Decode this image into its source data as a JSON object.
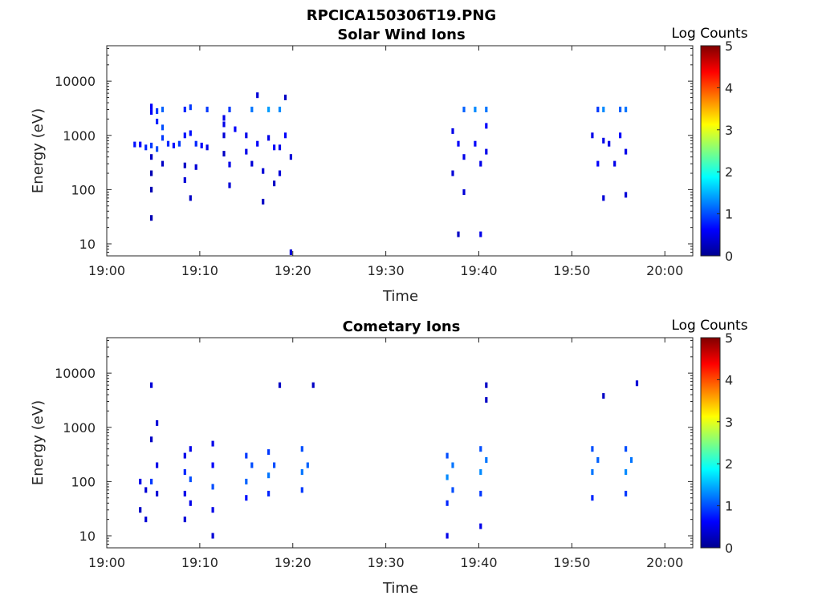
{
  "figure_title": "RPCICA150306T19.PNG",
  "chart_data": [
    {
      "type": "heatmap",
      "title": "Solar Wind Ions",
      "xlabel": "Time",
      "ylabel": "Energy (eV)",
      "yscale": "log",
      "ylim": [
        6,
        45000
      ],
      "xlim": [
        "19:00",
        "20:03"
      ],
      "x_ticks": [
        "19:00",
        "19:10",
        "19:20",
        "19:30",
        "19:40",
        "19:50",
        "20:00"
      ],
      "y_ticks": [
        "10",
        "100",
        "1000",
        "10000"
      ],
      "colorbar": {
        "label": "Log Counts",
        "min": 0,
        "max": 5,
        "ticks": [
          "0",
          "1",
          "2",
          "3",
          "4",
          "5"
        ],
        "colormap": "jet"
      },
      "grid": false,
      "cells": [
        {
          "t": 19.05,
          "e": 680,
          "v": 0.7
        },
        {
          "t": 19.06,
          "e": 680,
          "v": 0.6
        },
        {
          "t": 19.07,
          "e": 600,
          "v": 0.8
        },
        {
          "t": 19.08,
          "e": 650,
          "v": 0.9
        },
        {
          "t": 19.08,
          "e": 3400,
          "v": 0.6
        },
        {
          "t": 19.08,
          "e": 2700,
          "v": 0.6
        },
        {
          "t": 19.08,
          "e": 400,
          "v": 0.3
        },
        {
          "t": 19.08,
          "e": 200,
          "v": 0.2
        },
        {
          "t": 19.08,
          "e": 100,
          "v": 0.2
        },
        {
          "t": 19.08,
          "e": 30,
          "v": 0.2
        },
        {
          "t": 19.09,
          "e": 2800,
          "v": 0.9
        },
        {
          "t": 19.09,
          "e": 1800,
          "v": 0.8
        },
        {
          "t": 19.09,
          "e": 560,
          "v": 1.0
        },
        {
          "t": 19.1,
          "e": 900,
          "v": 0.9
        },
        {
          "t": 19.1,
          "e": 3000,
          "v": 1.1
        },
        {
          "t": 19.1,
          "e": 1400,
          "v": 1.0
        },
        {
          "t": 19.1,
          "e": 300,
          "v": 0.3
        },
        {
          "t": 19.11,
          "e": 700,
          "v": 0.8
        },
        {
          "t": 19.12,
          "e": 650,
          "v": 0.7
        },
        {
          "t": 19.13,
          "e": 700,
          "v": 0.9
        },
        {
          "t": 19.14,
          "e": 3000,
          "v": 0.8
        },
        {
          "t": 19.14,
          "e": 1000,
          "v": 0.7
        },
        {
          "t": 19.14,
          "e": 280,
          "v": 0.3
        },
        {
          "t": 19.14,
          "e": 150,
          "v": 0.4
        },
        {
          "t": 19.15,
          "e": 3300,
          "v": 0.9
        },
        {
          "t": 19.15,
          "e": 1100,
          "v": 0.7
        },
        {
          "t": 19.15,
          "e": 70,
          "v": 0.3
        },
        {
          "t": 19.16,
          "e": 700,
          "v": 0.8
        },
        {
          "t": 19.16,
          "e": 260,
          "v": 0.4
        },
        {
          "t": 19.17,
          "e": 650,
          "v": 0.6
        },
        {
          "t": 19.18,
          "e": 3000,
          "v": 0.9
        },
        {
          "t": 19.18,
          "e": 600,
          "v": 0.5
        },
        {
          "t": 19.21,
          "e": 1600,
          "v": 0.5
        },
        {
          "t": 19.21,
          "e": 2100,
          "v": 0.5
        },
        {
          "t": 19.21,
          "e": 1000,
          "v": 0.4
        },
        {
          "t": 19.21,
          "e": 460,
          "v": 0.3
        },
        {
          "t": 19.22,
          "e": 290,
          "v": 0.5
        },
        {
          "t": 19.22,
          "e": 120,
          "v": 0.4
        },
        {
          "t": 19.22,
          "e": 3000,
          "v": 0.9
        },
        {
          "t": 19.23,
          "e": 1300,
          "v": 0.6
        },
        {
          "t": 19.25,
          "e": 500,
          "v": 0.5
        },
        {
          "t": 19.25,
          "e": 1000,
          "v": 0.5
        },
        {
          "t": 19.26,
          "e": 3000,
          "v": 1.2
        },
        {
          "t": 19.26,
          "e": 300,
          "v": 0.4
        },
        {
          "t": 19.27,
          "e": 5500,
          "v": 0.4
        },
        {
          "t": 19.27,
          "e": 700,
          "v": 0.6
        },
        {
          "t": 19.28,
          "e": 220,
          "v": 0.4
        },
        {
          "t": 19.28,
          "e": 60,
          "v": 0.3
        },
        {
          "t": 19.29,
          "e": 3000,
          "v": 1.4
        },
        {
          "t": 19.29,
          "e": 900,
          "v": 0.5
        },
        {
          "t": 19.3,
          "e": 130,
          "v": 0.3
        },
        {
          "t": 19.3,
          "e": 600,
          "v": 0.6
        },
        {
          "t": 19.31,
          "e": 3000,
          "v": 1.3
        },
        {
          "t": 19.31,
          "e": 600,
          "v": 0.5
        },
        {
          "t": 19.31,
          "e": 200,
          "v": 0.4
        },
        {
          "t": 19.32,
          "e": 5000,
          "v": 0.3
        },
        {
          "t": 19.32,
          "e": 1000,
          "v": 0.6
        },
        {
          "t": 19.33,
          "e": 400,
          "v": 0.4
        },
        {
          "t": 19.33,
          "e": 7,
          "v": 0.4
        },
        {
          "t": 19.62,
          "e": 1200,
          "v": 0.5
        },
        {
          "t": 19.62,
          "e": 200,
          "v": 0.4
        },
        {
          "t": 19.63,
          "e": 700,
          "v": 0.6
        },
        {
          "t": 19.63,
          "e": 15,
          "v": 0.3
        },
        {
          "t": 19.64,
          "e": 3000,
          "v": 1.1
        },
        {
          "t": 19.64,
          "e": 400,
          "v": 0.5
        },
        {
          "t": 19.64,
          "e": 90,
          "v": 0.4
        },
        {
          "t": 19.66,
          "e": 3000,
          "v": 1.3
        },
        {
          "t": 19.66,
          "e": 700,
          "v": 0.6
        },
        {
          "t": 19.67,
          "e": 300,
          "v": 0.5
        },
        {
          "t": 19.67,
          "e": 15,
          "v": 0.5
        },
        {
          "t": 19.68,
          "e": 1500,
          "v": 0.6
        },
        {
          "t": 19.68,
          "e": 3000,
          "v": 1.2
        },
        {
          "t": 19.68,
          "e": 500,
          "v": 0.5
        },
        {
          "t": 19.87,
          "e": 1000,
          "v": 0.5
        },
        {
          "t": 19.88,
          "e": 3000,
          "v": 0.9
        },
        {
          "t": 19.88,
          "e": 300,
          "v": 0.6
        },
        {
          "t": 19.89,
          "e": 3000,
          "v": 1.3
        },
        {
          "t": 19.89,
          "e": 800,
          "v": 0.5
        },
        {
          "t": 19.89,
          "e": 70,
          "v": 0.4
        },
        {
          "t": 19.9,
          "e": 700,
          "v": 0.5
        },
        {
          "t": 19.91,
          "e": 300,
          "v": 0.5
        },
        {
          "t": 19.92,
          "e": 3000,
          "v": 1.1
        },
        {
          "t": 19.92,
          "e": 1000,
          "v": 0.6
        },
        {
          "t": 19.93,
          "e": 3000,
          "v": 1.2
        },
        {
          "t": 19.93,
          "e": 500,
          "v": 0.5
        },
        {
          "t": 19.93,
          "e": 80,
          "v": 0.4
        }
      ]
    },
    {
      "type": "heatmap",
      "title": "Cometary Ions",
      "xlabel": "Time",
      "ylabel": "Energy (eV)",
      "yscale": "log",
      "ylim": [
        6,
        45000
      ],
      "xlim": [
        "19:00",
        "20:03"
      ],
      "x_ticks": [
        "19:00",
        "19:10",
        "19:20",
        "19:30",
        "19:40",
        "19:50",
        "20:00"
      ],
      "y_ticks": [
        "10",
        "100",
        "1000",
        "10000"
      ],
      "colorbar": {
        "label": "Log Counts",
        "min": 0,
        "max": 5,
        "ticks": [
          "0",
          "1",
          "2",
          "3",
          "4",
          "5"
        ],
        "colormap": "jet"
      },
      "grid": false,
      "cells": [
        {
          "t": 19.06,
          "e": 30,
          "v": 0.3
        },
        {
          "t": 19.06,
          "e": 100,
          "v": 0.5
        },
        {
          "t": 19.07,
          "e": 20,
          "v": 0.4
        },
        {
          "t": 19.07,
          "e": 70,
          "v": 0.4
        },
        {
          "t": 19.08,
          "e": 6000,
          "v": 0.4
        },
        {
          "t": 19.08,
          "e": 600,
          "v": 0.3
        },
        {
          "t": 19.08,
          "e": 100,
          "v": 0.9
        },
        {
          "t": 19.09,
          "e": 1200,
          "v": 0.4
        },
        {
          "t": 19.09,
          "e": 200,
          "v": 0.5
        },
        {
          "t": 19.09,
          "e": 60,
          "v": 0.4
        },
        {
          "t": 19.14,
          "e": 300,
          "v": 0.5
        },
        {
          "t": 19.14,
          "e": 150,
          "v": 0.8
        },
        {
          "t": 19.14,
          "e": 60,
          "v": 0.5
        },
        {
          "t": 19.14,
          "e": 20,
          "v": 0.4
        },
        {
          "t": 19.15,
          "e": 400,
          "v": 0.5
        },
        {
          "t": 19.15,
          "e": 110,
          "v": 1.0
        },
        {
          "t": 19.15,
          "e": 40,
          "v": 0.5
        },
        {
          "t": 19.19,
          "e": 500,
          "v": 0.5
        },
        {
          "t": 19.19,
          "e": 200,
          "v": 0.6
        },
        {
          "t": 19.19,
          "e": 80,
          "v": 1.0
        },
        {
          "t": 19.19,
          "e": 30,
          "v": 0.5
        },
        {
          "t": 19.19,
          "e": 10,
          "v": 0.4
        },
        {
          "t": 19.25,
          "e": 300,
          "v": 0.9
        },
        {
          "t": 19.25,
          "e": 100,
          "v": 1.1
        },
        {
          "t": 19.25,
          "e": 50,
          "v": 0.7
        },
        {
          "t": 19.26,
          "e": 200,
          "v": 1.0
        },
        {
          "t": 19.29,
          "e": 350,
          "v": 0.9
        },
        {
          "t": 19.29,
          "e": 130,
          "v": 1.2
        },
        {
          "t": 19.29,
          "e": 60,
          "v": 0.8
        },
        {
          "t": 19.3,
          "e": 200,
          "v": 1.0
        },
        {
          "t": 19.31,
          "e": 6000,
          "v": 0.3
        },
        {
          "t": 19.35,
          "e": 400,
          "v": 1.0
        },
        {
          "t": 19.35,
          "e": 150,
          "v": 1.2
        },
        {
          "t": 19.35,
          "e": 70,
          "v": 0.9
        },
        {
          "t": 19.36,
          "e": 200,
          "v": 1.1
        },
        {
          "t": 19.37,
          "e": 6000,
          "v": 0.3
        },
        {
          "t": 19.61,
          "e": 300,
          "v": 1.0
        },
        {
          "t": 19.61,
          "e": 120,
          "v": 1.3
        },
        {
          "t": 19.61,
          "e": 40,
          "v": 0.8
        },
        {
          "t": 19.61,
          "e": 10,
          "v": 0.5
        },
        {
          "t": 19.62,
          "e": 200,
          "v": 1.2
        },
        {
          "t": 19.62,
          "e": 70,
          "v": 1.0
        },
        {
          "t": 19.67,
          "e": 400,
          "v": 1.0
        },
        {
          "t": 19.67,
          "e": 150,
          "v": 1.3
        },
        {
          "t": 19.67,
          "e": 60,
          "v": 0.9
        },
        {
          "t": 19.67,
          "e": 15,
          "v": 0.5
        },
        {
          "t": 19.68,
          "e": 250,
          "v": 1.2
        },
        {
          "t": 19.68,
          "e": 6000,
          "v": 0.3
        },
        {
          "t": 19.68,
          "e": 3200,
          "v": 0.3
        },
        {
          "t": 19.87,
          "e": 400,
          "v": 1.0
        },
        {
          "t": 19.87,
          "e": 150,
          "v": 1.2
        },
        {
          "t": 19.87,
          "e": 50,
          "v": 0.8
        },
        {
          "t": 19.88,
          "e": 250,
          "v": 1.1
        },
        {
          "t": 19.89,
          "e": 3800,
          "v": 0.3
        },
        {
          "t": 19.93,
          "e": 400,
          "v": 1.0
        },
        {
          "t": 19.93,
          "e": 150,
          "v": 1.3
        },
        {
          "t": 19.93,
          "e": 60,
          "v": 0.9
        },
        {
          "t": 19.94,
          "e": 250,
          "v": 1.2
        },
        {
          "t": 19.95,
          "e": 6500,
          "v": 0.4
        }
      ]
    }
  ]
}
